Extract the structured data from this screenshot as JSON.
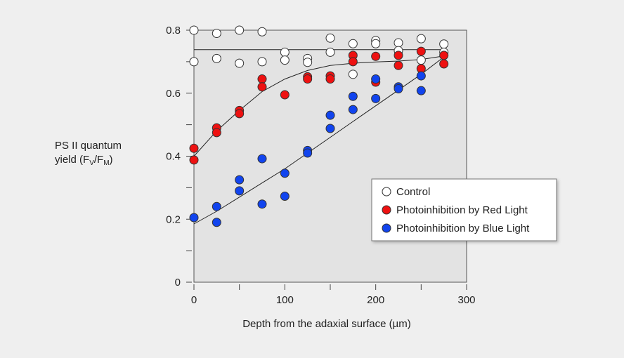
{
  "chart_data": {
    "type": "scatter",
    "xlabel": "Depth from the adaxial surface (µm)",
    "ylabel_line1": "PS II quantum",
    "ylabel_line2_prefix": "yield (F",
    "ylabel_sub_v": "V",
    "ylabel_slash": "/F",
    "ylabel_sub_m": "M",
    "ylabel_suffix": ")",
    "xlim": [
      0,
      300
    ],
    "ylim": [
      0,
      0.8
    ],
    "x_ticks": [
      0,
      50,
      100,
      150,
      200,
      250,
      300
    ],
    "x_tick_labels": [
      "0",
      "",
      "100",
      "",
      "200",
      "",
      "300"
    ],
    "y_ticks": [
      0,
      0.1,
      0.2,
      0.3,
      0.4,
      0.5,
      0.6,
      0.7,
      0.8
    ],
    "y_tick_labels": [
      "0",
      "",
      "0.2",
      "",
      "0.4",
      "",
      "0.6",
      "",
      "0.8"
    ],
    "legend_position": "right",
    "series": [
      {
        "name": "Control",
        "color": "#ffffff",
        "points": [
          [
            0,
            0.8
          ],
          [
            0,
            0.7
          ],
          [
            25,
            0.79
          ],
          [
            25,
            0.71
          ],
          [
            50,
            0.8
          ],
          [
            50,
            0.695
          ],
          [
            75,
            0.795
          ],
          [
            75,
            0.7
          ],
          [
            100,
            0.73
          ],
          [
            100,
            0.705
          ],
          [
            125,
            0.71
          ],
          [
            125,
            0.698
          ],
          [
            150,
            0.775
          ],
          [
            150,
            0.73
          ],
          [
            175,
            0.757
          ],
          [
            175,
            0.66
          ],
          [
            200,
            0.767
          ],
          [
            200,
            0.757
          ],
          [
            225,
            0.76
          ],
          [
            225,
            0.735
          ],
          [
            250,
            0.773
          ],
          [
            250,
            0.705
          ],
          [
            275,
            0.756
          ],
          [
            275,
            0.73
          ]
        ],
        "fit": [
          [
            0,
            0.738
          ],
          [
            275,
            0.738
          ]
        ]
      },
      {
        "name": "Photoinhibition by Red Light",
        "color": "#ee1111",
        "points": [
          [
            0,
            0.425
          ],
          [
            0,
            0.388
          ],
          [
            25,
            0.49
          ],
          [
            25,
            0.475
          ],
          [
            50,
            0.545
          ],
          [
            50,
            0.535
          ],
          [
            75,
            0.645
          ],
          [
            75,
            0.62
          ],
          [
            100,
            0.595
          ],
          [
            125,
            0.652
          ],
          [
            125,
            0.645
          ],
          [
            150,
            0.655
          ],
          [
            150,
            0.645
          ],
          [
            175,
            0.72
          ],
          [
            175,
            0.7
          ],
          [
            200,
            0.717
          ],
          [
            200,
            0.635
          ],
          [
            225,
            0.72
          ],
          [
            225,
            0.688
          ],
          [
            250,
            0.733
          ],
          [
            250,
            0.678
          ],
          [
            275,
            0.72
          ],
          [
            275,
            0.693
          ]
        ],
        "fit": [
          [
            0,
            0.4
          ],
          [
            25,
            0.48
          ],
          [
            50,
            0.545
          ],
          [
            75,
            0.605
          ],
          [
            100,
            0.645
          ],
          [
            125,
            0.672
          ],
          [
            150,
            0.688
          ],
          [
            175,
            0.695
          ],
          [
            200,
            0.699
          ],
          [
            225,
            0.702
          ],
          [
            250,
            0.707
          ],
          [
            275,
            0.718
          ]
        ]
      },
      {
        "name": "Photoinhibition by Blue Light",
        "color": "#1144ee",
        "points": [
          [
            0,
            0.205
          ],
          [
            25,
            0.24
          ],
          [
            25,
            0.19
          ],
          [
            50,
            0.325
          ],
          [
            50,
            0.29
          ],
          [
            75,
            0.392
          ],
          [
            75,
            0.248
          ],
          [
            100,
            0.346
          ],
          [
            100,
            0.273
          ],
          [
            125,
            0.418
          ],
          [
            125,
            0.41
          ],
          [
            150,
            0.53
          ],
          [
            150,
            0.488
          ],
          [
            175,
            0.59
          ],
          [
            175,
            0.548
          ],
          [
            200,
            0.645
          ],
          [
            200,
            0.583
          ],
          [
            225,
            0.62
          ],
          [
            225,
            0.614
          ],
          [
            250,
            0.655
          ],
          [
            250,
            0.608
          ]
        ],
        "fit": [
          [
            0,
            0.185
          ],
          [
            25,
            0.225
          ],
          [
            50,
            0.27
          ],
          [
            75,
            0.315
          ],
          [
            100,
            0.36
          ],
          [
            125,
            0.41
          ],
          [
            150,
            0.46
          ],
          [
            175,
            0.51
          ],
          [
            200,
            0.56
          ],
          [
            225,
            0.61
          ],
          [
            250,
            0.66
          ],
          [
            275,
            0.715
          ]
        ]
      }
    ]
  }
}
